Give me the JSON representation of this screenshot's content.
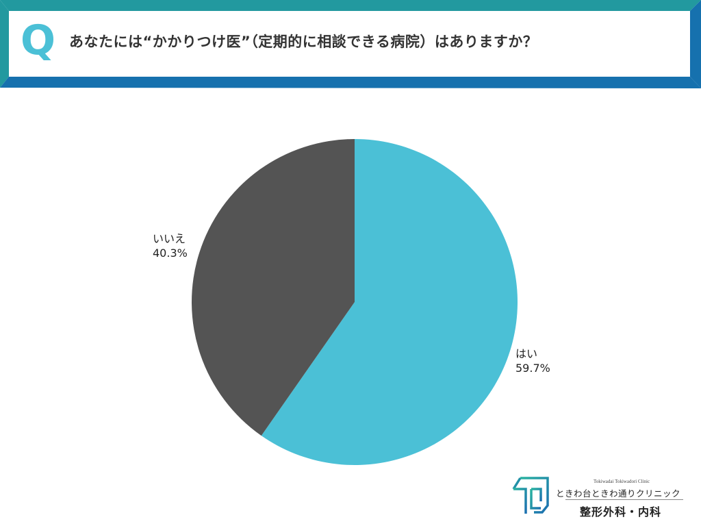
{
  "header": {
    "q_mark": "Q",
    "question": "あなたには“かかりつけ医”（定期的に相談できる病院）はありますか？",
    "colors": {
      "top_left_band": "#22999F",
      "bottom_right_band": "#1671AE",
      "q_mark": "#4BC0D6"
    }
  },
  "chart_data": {
    "type": "pie",
    "title": "あなたには“かかりつけ医”（定期的に相談できる病院）はありますか？",
    "categories": [
      "はい",
      "いいえ"
    ],
    "values": [
      59.7,
      40.3
    ],
    "unit": "%",
    "colors": [
      "#4BC0D6",
      "#545454"
    ],
    "start_angle": "12 o'clock, clockwise",
    "labels": [
      {
        "name": "はい",
        "value_text": "59.7%"
      },
      {
        "name": "いいえ",
        "value_text": "40.3%"
      }
    ],
    "legend": "none (direct labels)"
  },
  "logo": {
    "english_name": "Tokiwadai Tokiwadori Clinic",
    "clinic_name": "ときわ台ときわ通りクリニック",
    "departments": "整形外科・内科"
  }
}
